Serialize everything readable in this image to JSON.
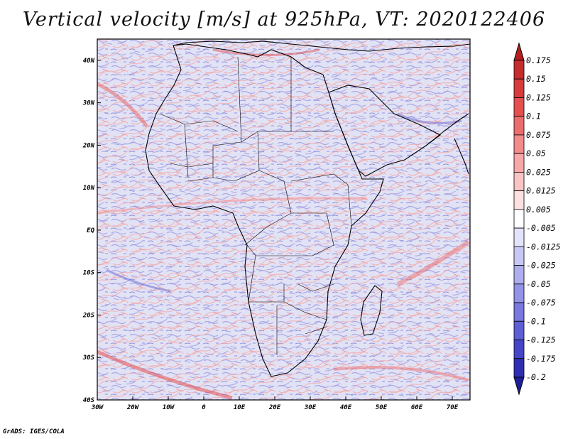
{
  "title": "Vertical velocity [m/s] at 925hPa, VT: 2020122406",
  "credit": "GrADS: IGES/COLA",
  "map": {
    "lon_range": [
      -30,
      75
    ],
    "lat_range": [
      -40,
      45
    ],
    "lat_labels": [
      "40N",
      "30N",
      "20N",
      "10N",
      "EQ",
      "10S",
      "20S",
      "30S",
      "40S"
    ],
    "lat_values": [
      40,
      30,
      20,
      10,
      0,
      -10,
      -20,
      -30,
      -40
    ],
    "lon_labels": [
      "30W",
      "20W",
      "10W",
      "0",
      "10E",
      "20E",
      "30E",
      "40E",
      "50E",
      "60E",
      "70E"
    ],
    "lon_values": [
      -30,
      -20,
      -10,
      0,
      10,
      20,
      30,
      40,
      50,
      60,
      70
    ]
  },
  "colorbar": {
    "top_arrow_color": "#b41e1e",
    "bottom_arrow_color": "#1e1e9b",
    "bins": [
      {
        "label": "0.175",
        "color": "#c52d2d"
      },
      {
        "label": "0.15",
        "color": "#d73b3b"
      },
      {
        "label": "0.125",
        "color": "#e45050"
      },
      {
        "label": "0.1",
        "color": "#ec6d6d"
      },
      {
        "label": "0.075",
        "color": "#f38b8b"
      },
      {
        "label": "0.05",
        "color": "#f8a8a8"
      },
      {
        "label": "0.025",
        "color": "#fbc4c4"
      },
      {
        "label": "0.0125",
        "color": "#fde0e0"
      },
      {
        "label": "0.005",
        "color": "#ffffff"
      },
      {
        "label": "-0.005",
        "color": "#e3e3fb"
      },
      {
        "label": "-0.0125",
        "color": "#c8c8f6"
      },
      {
        "label": "-0.025",
        "color": "#aeaeef"
      },
      {
        "label": "-0.05",
        "color": "#9393e8"
      },
      {
        "label": "-0.075",
        "color": "#7878df"
      },
      {
        "label": "-0.1",
        "color": "#5e5ed6"
      },
      {
        "label": "-0.125",
        "color": "#4545c8"
      },
      {
        "label": "-0.175",
        "color": "#2e2eb4"
      },
      {
        "label": "-0.2",
        "color": "#1e1e9b"
      }
    ]
  }
}
